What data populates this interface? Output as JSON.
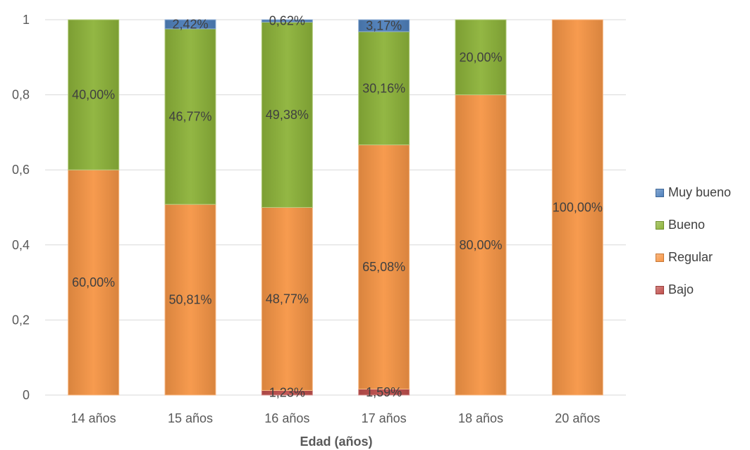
{
  "chart_data": {
    "type": "bar",
    "stacked": true,
    "xlabel": "Edad (años)",
    "ylabel": "",
    "ylim": [
      0,
      1
    ],
    "yticks": [
      "0",
      "0,2",
      "0,4",
      "0,6",
      "0,8",
      "1"
    ],
    "categories": [
      "14 años",
      "15 años",
      "16 años",
      "17 años",
      "18 años",
      "20 años"
    ],
    "series": [
      {
        "name": "Bajo",
        "color": "#c0504d",
        "values": [
          0,
          0,
          0.0123,
          0.0159,
          0,
          0
        ],
        "labels": [
          "",
          "",
          "1,23%",
          "1,59%",
          "",
          ""
        ]
      },
      {
        "name": "Regular",
        "color": "#f79646",
        "values": [
          0.6,
          0.5081,
          0.4877,
          0.6508,
          0.8,
          1.0
        ],
        "labels": [
          "60,00%",
          "50,81%",
          "48,77%",
          "65,08%",
          "80,00%",
          "100,00%"
        ]
      },
      {
        "name": "Bueno",
        "color": "#8db33a",
        "values": [
          0.4,
          0.4677,
          0.4938,
          0.3016,
          0.2,
          0
        ],
        "labels": [
          "40,00%",
          "46,77%",
          "49,38%",
          "30,16%",
          "20,00%",
          ""
        ]
      },
      {
        "name": "Muy bueno",
        "color": "#4f81bd",
        "values": [
          0,
          0.0242,
          0.0062,
          0.0317,
          0,
          0
        ],
        "labels": [
          "",
          "2,42%",
          "0,62%",
          "3,17%",
          "",
          ""
        ]
      }
    ],
    "legend_order": [
      "Muy bueno",
      "Bueno",
      "Regular",
      "Bajo"
    ],
    "legend_position": "right",
    "grid": true
  }
}
